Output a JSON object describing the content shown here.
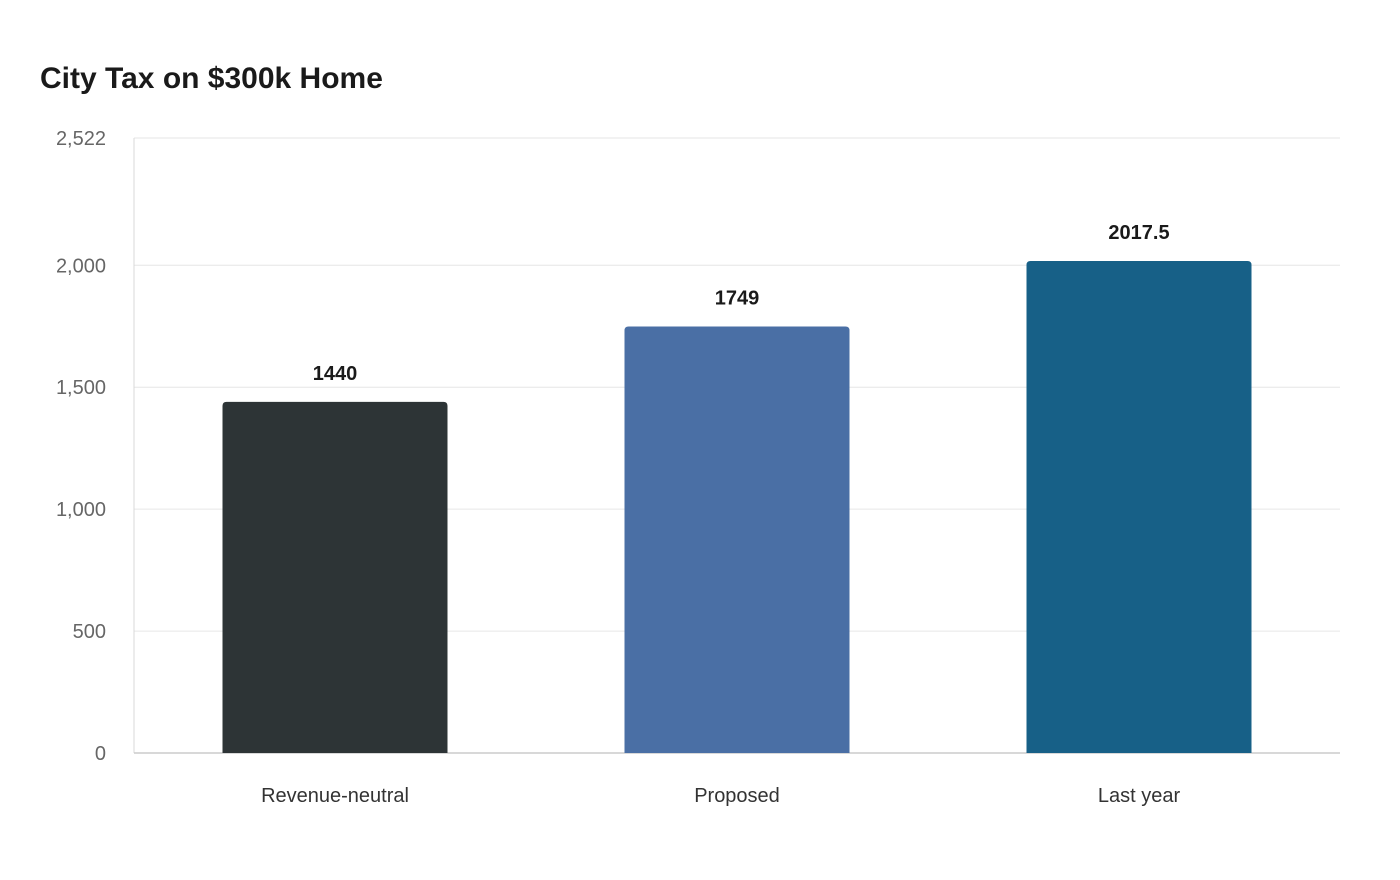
{
  "chart_data": {
    "type": "bar",
    "title": "City Tax on $300k Home",
    "xlabel": "",
    "ylabel": "",
    "categories": [
      "Revenue-neutral",
      "Proposed",
      "Last year"
    ],
    "values": [
      1440,
      1749,
      2017.5
    ],
    "value_labels": [
      "1440",
      "1749",
      "2017.5"
    ],
    "colors": [
      "#2d3436",
      "#4a6fa5",
      "#176087"
    ],
    "ylim": [
      0,
      2522
    ],
    "yticks": [
      0,
      500,
      1000,
      1500,
      2000,
      2522
    ],
    "ytick_labels": [
      "0",
      "500",
      "1,000",
      "1,500",
      "2,000",
      "2,522"
    ],
    "grid": true,
    "legend": "none"
  }
}
